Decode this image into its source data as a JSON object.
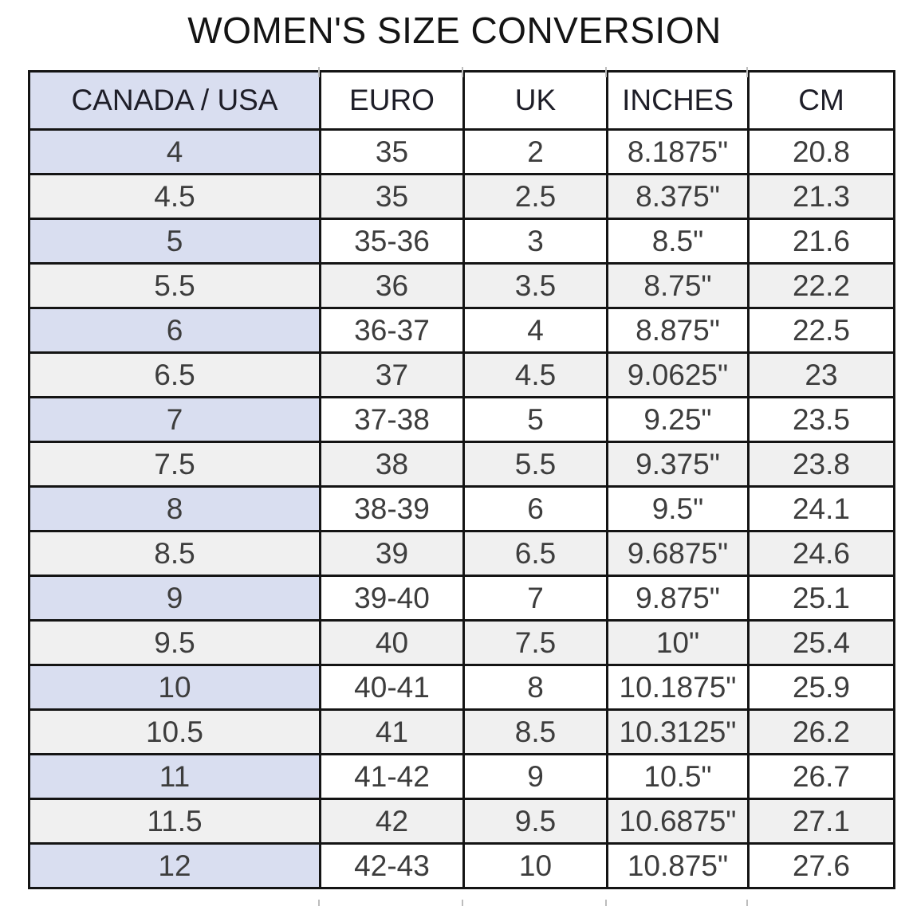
{
  "title": "WOMEN'S SIZE CONVERSION",
  "chart_data": {
    "type": "table",
    "title": "WOMEN'S SIZE CONVERSION",
    "columns": [
      "CANADA / USA",
      "EURO",
      "UK",
      "INCHES",
      "CM"
    ],
    "rows": [
      [
        "4",
        "35",
        "2",
        "8.1875\"",
        "20.8"
      ],
      [
        "4.5",
        "35",
        "2.5",
        "8.375\"",
        "21.3"
      ],
      [
        "5",
        "35-36",
        "3",
        "8.5\"",
        "21.6"
      ],
      [
        "5.5",
        "36",
        "3.5",
        "8.75\"",
        "22.2"
      ],
      [
        "6",
        "36-37",
        "4",
        "8.875\"",
        "22.5"
      ],
      [
        "6.5",
        "37",
        "4.5",
        "9.0625\"",
        "23"
      ],
      [
        "7",
        "37-38",
        "5",
        "9.25\"",
        "23.5"
      ],
      [
        "7.5",
        "38",
        "5.5",
        "9.375\"",
        "23.8"
      ],
      [
        "8",
        "38-39",
        "6",
        "9.5\"",
        "24.1"
      ],
      [
        "8.5",
        "39",
        "6.5",
        "9.6875\"",
        "24.6"
      ],
      [
        "9",
        "39-40",
        "7",
        "9.875\"",
        "25.1"
      ],
      [
        "9.5",
        "40",
        "7.5",
        "10\"",
        "25.4"
      ],
      [
        "10",
        "40-41",
        "8",
        "10.1875\"",
        "25.9"
      ],
      [
        "10.5",
        "41",
        "8.5",
        "10.3125\"",
        "26.2"
      ],
      [
        "11",
        "41-42",
        "9",
        "10.5\"",
        "26.7"
      ],
      [
        "11.5",
        "42",
        "9.5",
        "10.6875\"",
        "27.1"
      ],
      [
        "12",
        "42-43",
        "10",
        "10.875\"",
        "27.6"
      ]
    ]
  },
  "colors": {
    "first_column_bg": "#d9def0",
    "stripe_bg": "#f0f0f0",
    "border": "#141414"
  }
}
